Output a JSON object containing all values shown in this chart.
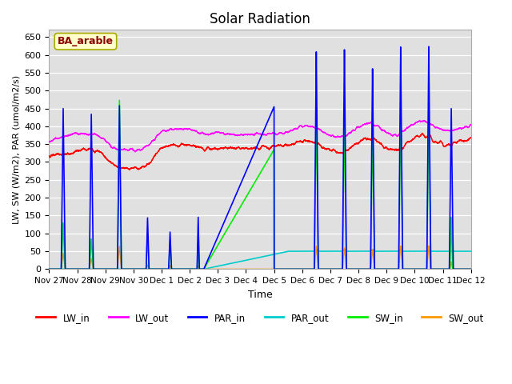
{
  "title": "Solar Radiation",
  "ylabel": "LW, SW (W/m2), PAR (umol/m2/s)",
  "xlabel": "Time",
  "ylim": [
    0,
    670
  ],
  "yticks": [
    0,
    50,
    100,
    150,
    200,
    250,
    300,
    350,
    400,
    450,
    500,
    550,
    600,
    650
  ],
  "annotation_text": "BA_arable",
  "annotation_color": "#8B0000",
  "annotation_bg": "#FFFFCC",
  "background_color": "#E0E0E0",
  "line_colors": {
    "LW_in": "#FF0000",
    "LW_out": "#FF00FF",
    "PAR_in": "#0000FF",
    "PAR_out": "#00CCCC",
    "SW_in": "#00EE00",
    "SW_out": "#FF9900"
  },
  "x_tick_labels": [
    "Nov 27",
    "Nov 28",
    "Nov 29",
    "Nov 30",
    "Dec 1",
    "Dec 2",
    "Dec 3",
    "Dec 4",
    "Dec 5",
    "Dec 6",
    "Dec 7",
    "Dec 8",
    "Dec 9",
    "Dec 10",
    "Dec 11",
    "Dec 12"
  ],
  "n_points": 7200
}
